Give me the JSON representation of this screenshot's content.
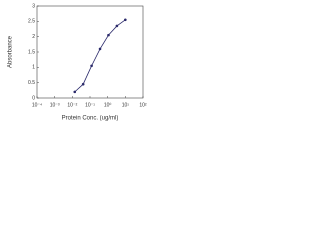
{
  "chart_data": {
    "type": "line",
    "x_label": "Protein Conc. (ug/ml)",
    "y_label": "Absorbance",
    "x": [
      0.0137,
      0.041,
      0.123,
      0.37,
      1.11,
      3.33,
      10
    ],
    "series": [
      {
        "color": "#2b2a6b",
        "values": [
          0.2,
          0.45,
          1.05,
          1.6,
          2.05,
          2.35,
          2.55
        ]
      }
    ],
    "xscale": "log",
    "xlim": [
      0.0001,
      100
    ],
    "xticks": [
      {
        "value": 0.0001,
        "label": "10⁻⁴"
      },
      {
        "value": 0.001,
        "label": "10⁻³"
      },
      {
        "value": 0.01,
        "label": "10⁻²"
      },
      {
        "value": 0.1,
        "label": "10⁻¹"
      },
      {
        "value": 1,
        "label": "10⁰"
      },
      {
        "value": 10,
        "label": "10¹"
      },
      {
        "value": 100,
        "label": "10²"
      }
    ],
    "ylim": [
      0,
      3
    ],
    "yticks": [
      0,
      0.5,
      1,
      1.5,
      2,
      2.5,
      3
    ]
  }
}
